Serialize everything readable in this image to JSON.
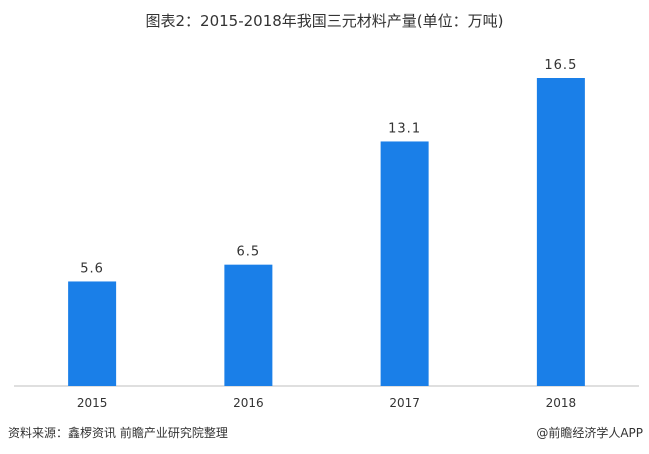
{
  "title": "图表2：2015-2018年我国三元材料产量(单位：万吨)",
  "chart_data": {
    "type": "bar",
    "categories": [
      "2015",
      "2016",
      "2017",
      "2018"
    ],
    "values": [
      5.6,
      6.5,
      13.1,
      16.5
    ],
    "value_labels": [
      "5.6",
      "6.5",
      "13.1",
      "16.5"
    ],
    "title": "图表2：2015-2018年我国三元材料产量(单位：万吨)",
    "xlabel": "",
    "ylabel": "",
    "ylim": [
      0,
      18
    ],
    "grid": false,
    "legend": "none",
    "bar_color": "#1a7fe8"
  },
  "footer": {
    "source": "资料来源：鑫椤资讯 前瞻产业研究院整理",
    "brand": "@前瞻经济学人APP"
  },
  "colors": {
    "bar": "#1a7fe8",
    "axis": "#bfbfbf",
    "text": "#333333"
  }
}
